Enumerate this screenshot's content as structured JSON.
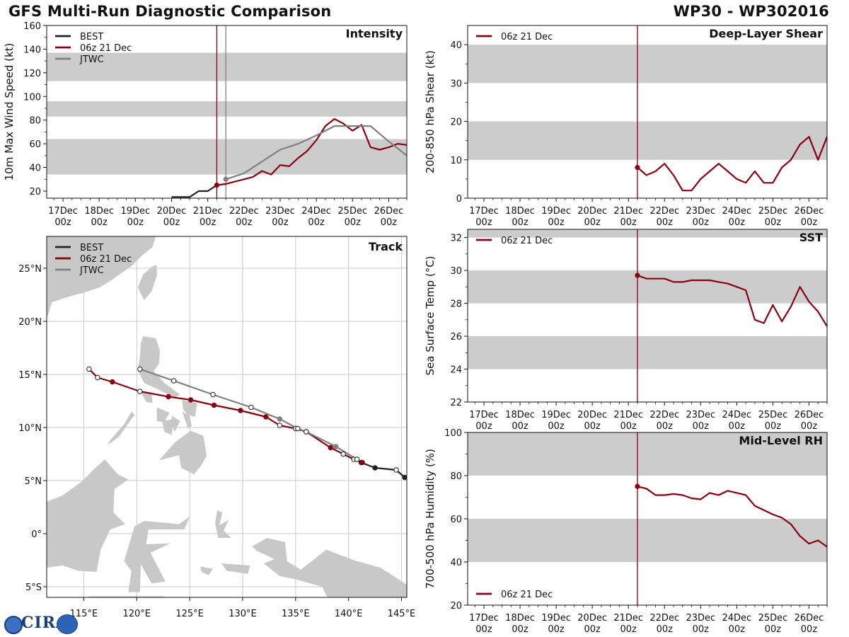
{
  "header": {
    "title": "GFS Multi-Run Diagnostic Comparison",
    "storm_id": "WP30 - WP302016"
  },
  "time_axis": {
    "labels": [
      "17Dec\n00z",
      "18Dec\n00z",
      "19Dec\n00z",
      "20Dec\n00z",
      "21Dec\n00z",
      "22Dec\n00z",
      "23Dec\n00z",
      "24Dec\n00z",
      "25Dec\n00z",
      "26Dec\n00z"
    ],
    "ticks": [
      0,
      1,
      2,
      3,
      4,
      5,
      6,
      7,
      8,
      9
    ],
    "range": [
      -0.45,
      9.5
    ]
  },
  "colors": {
    "best": "#222222",
    "run": "#8b0010",
    "jtwc": "#808080",
    "band": "#cccccc"
  },
  "chart_data": [
    {
      "id": "intensity",
      "type": "line",
      "title": "Intensity",
      "ylabel": "10m Max Wind Speed (kt)",
      "ylim": [
        14,
        160
      ],
      "yticks": [
        20,
        40,
        60,
        80,
        100,
        120,
        140,
        160
      ],
      "bands": [
        [
          34,
          64
        ],
        [
          83,
          96
        ],
        [
          113,
          137
        ]
      ],
      "vlines": [
        {
          "x": 4.25,
          "color": "#8b0010"
        },
        {
          "x": 4.5,
          "color": "#808080"
        }
      ],
      "legend": [
        "BEST",
        "06z 21 Dec",
        "JTWC"
      ],
      "series": [
        {
          "name": "BEST",
          "color": "#222222",
          "x": [
            3.0,
            3.25,
            3.5,
            3.75,
            4.0,
            4.25
          ],
          "values": [
            15,
            15,
            15,
            20,
            20,
            25
          ]
        },
        {
          "name": "06z 21 Dec",
          "color": "#8b0010",
          "x": [
            4.25,
            4.5,
            4.75,
            5.0,
            5.25,
            5.5,
            5.75,
            6.0,
            6.25,
            6.5,
            6.75,
            7.0,
            7.25,
            7.5,
            7.75,
            8.0,
            8.25,
            8.5,
            8.75,
            9.0,
            9.25,
            9.5
          ],
          "values": [
            25,
            26,
            28,
            30,
            32,
            37,
            34,
            42,
            41,
            48,
            54,
            63,
            75,
            81,
            77,
            71,
            76,
            57,
            55,
            57,
            60,
            59
          ],
          "marker_first": true
        },
        {
          "name": "JTWC",
          "color": "#808080",
          "x": [
            4.5,
            5.0,
            5.5,
            6.0,
            6.5,
            7.0,
            7.5,
            8.0,
            8.5,
            9.0,
            9.5
          ],
          "values": [
            30,
            35,
            45,
            55,
            60,
            67,
            75,
            75,
            75,
            62,
            50
          ],
          "marker_first": true
        }
      ]
    },
    {
      "id": "shear",
      "type": "line",
      "title": "Deep-Layer Shear",
      "ylabel": "200-850 hPa Shear (kt)",
      "ylim": [
        0,
        45
      ],
      "yticks": [
        0,
        10,
        20,
        30,
        40
      ],
      "bands": [
        [
          10,
          20
        ],
        [
          30,
          40
        ]
      ],
      "vlines": [
        {
          "x": 4.25,
          "color": "#8b0010"
        }
      ],
      "legend": [
        "06z 21 Dec"
      ],
      "series": [
        {
          "name": "06z 21 Dec",
          "color": "#8b0010",
          "x": [
            4.25,
            4.5,
            4.75,
            5.0,
            5.25,
            5.5,
            5.75,
            6.0,
            6.25,
            6.5,
            6.75,
            7.0,
            7.25,
            7.5,
            7.75,
            8.0,
            8.25,
            8.5,
            8.75,
            9.0,
            9.25,
            9.5
          ],
          "values": [
            8,
            6,
            7,
            9,
            6,
            2,
            2,
            5,
            7,
            9,
            7,
            5,
            4,
            7,
            4,
            4,
            8,
            10,
            14,
            16,
            10,
            16
          ],
          "marker_first": true
        }
      ]
    },
    {
      "id": "sst",
      "type": "line",
      "title": "SST",
      "ylabel": "Sea Surface Temp (°C)",
      "ylim": [
        22,
        32.5
      ],
      "yticks": [
        22,
        24,
        26,
        28,
        30,
        32
      ],
      "bands": [
        [
          24,
          26
        ],
        [
          28,
          30
        ],
        [
          32,
          32.5
        ]
      ],
      "vlines": [
        {
          "x": 4.25,
          "color": "#8b0010"
        }
      ],
      "legend": [
        "06z 21 Dec"
      ],
      "series": [
        {
          "name": "06z 21 Dec",
          "color": "#8b0010",
          "x": [
            4.25,
            4.5,
            4.75,
            5.0,
            5.25,
            5.5,
            5.75,
            6.0,
            6.25,
            6.5,
            6.75,
            7.0,
            7.25,
            7.5,
            7.75,
            8.0,
            8.25,
            8.5,
            8.75,
            9.0,
            9.25,
            9.5
          ],
          "values": [
            29.7,
            29.5,
            29.5,
            29.5,
            29.3,
            29.3,
            29.4,
            29.4,
            29.4,
            29.3,
            29.2,
            29.0,
            28.8,
            27.0,
            26.8,
            27.9,
            26.9,
            27.8,
            29.0,
            28.1,
            27.5,
            26.6
          ],
          "marker_first": true
        }
      ]
    },
    {
      "id": "rh",
      "type": "line",
      "title": "Mid-Level RH",
      "ylabel": "700-500 hPa Humidity (%)",
      "ylim": [
        20,
        100
      ],
      "yticks": [
        20,
        40,
        60,
        80,
        100
      ],
      "bands": [
        [
          40,
          60
        ],
        [
          80,
          100
        ]
      ],
      "vlines": [
        {
          "x": 4.25,
          "color": "#8b0010"
        }
      ],
      "legend": [
        "06z 21 Dec"
      ],
      "legend_position": "bottom-left",
      "series": [
        {
          "name": "06z 21 Dec",
          "color": "#8b0010",
          "x": [
            4.25,
            4.5,
            4.75,
            5.0,
            5.25,
            5.5,
            5.75,
            6.0,
            6.25,
            6.5,
            6.75,
            7.0,
            7.25,
            7.5,
            7.75,
            8.0,
            8.25,
            8.5,
            8.75,
            9.0,
            9.25,
            9.5
          ],
          "values": [
            75,
            74,
            71,
            71,
            71.5,
            71,
            69.5,
            69,
            72,
            71,
            73,
            72,
            71,
            66,
            64,
            62,
            60.5,
            57.5,
            52,
            48.5,
            50,
            47
          ],
          "marker_first": true
        }
      ]
    },
    {
      "id": "track",
      "type": "scatter",
      "title": "Track",
      "xlabel": "Longitude",
      "ylabel": "Latitude",
      "xlim": [
        111.5,
        145.5
      ],
      "ylim": [
        -6,
        28
      ],
      "xticks": [
        115,
        120,
        125,
        130,
        135,
        140,
        145
      ],
      "xtick_labels": [
        "115°E",
        "120°E",
        "125°E",
        "130°E",
        "135°E",
        "140°E",
        "145°E"
      ],
      "yticks": [
        -5,
        0,
        5,
        10,
        15,
        20,
        25
      ],
      "ytick_labels": [
        "5°S",
        "0°",
        "5°N",
        "10°N",
        "15°N",
        "20°N",
        "25°N"
      ],
      "legend": [
        "BEST",
        "06z 21 Dec",
        "JTWC"
      ],
      "series": [
        {
          "name": "BEST",
          "color": "#222222",
          "lon": [
            145.3,
            144.5,
            142.5,
            141.2
          ],
          "lat": [
            5.3,
            6.0,
            6.2,
            6.7
          ],
          "markers": [
            1,
            0,
            1,
            1
          ]
        },
        {
          "name": "06z 21 Dec",
          "color": "#8b0010",
          "lon": [
            141.3,
            140.5,
            139.5,
            138.3,
            136.0,
            135.0,
            133.5,
            132.2,
            129.8,
            127.3,
            125.1,
            123.0,
            120.3,
            117.7,
            116.3,
            115.5
          ],
          "lat": [
            6.7,
            7.0,
            7.5,
            8.1,
            9.6,
            9.9,
            10.2,
            11.0,
            11.6,
            12.1,
            12.6,
            12.9,
            13.4,
            14.3,
            14.7,
            15.5
          ],
          "markers": [
            1,
            0,
            0,
            1,
            0,
            0,
            0,
            1,
            1,
            1,
            1,
            1,
            0,
            1,
            0,
            0
          ]
        },
        {
          "name": "JTWC",
          "color": "#808080",
          "lon": [
            140.8,
            138.8,
            136.0,
            135.2,
            133.5,
            130.8,
            127.2,
            123.5,
            120.3
          ],
          "lat": [
            7.0,
            8.2,
            9.6,
            9.9,
            10.8,
            11.9,
            13.1,
            14.4,
            15.5
          ],
          "markers": [
            0,
            1,
            0,
            0,
            1,
            0,
            0,
            0,
            0
          ]
        }
      ]
    }
  ]
}
